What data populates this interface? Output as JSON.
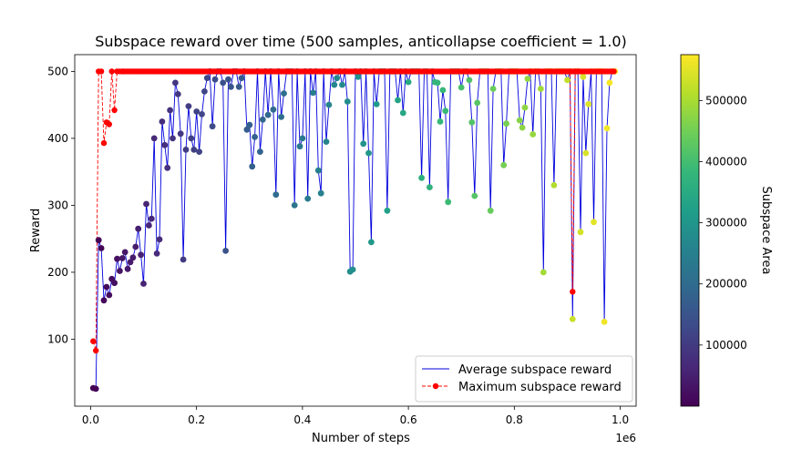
{
  "chart_data": {
    "type": "scatter",
    "title": "Subspace reward over time (500 samples, anticollapse coefficient = 1.0)",
    "xlabel": "Number of steps",
    "ylabel": "Reward",
    "x_offset_label": "1e6",
    "xlim": [
      -0.03,
      1.03
    ],
    "ylim": [
      0,
      525
    ],
    "x_ticks": [
      0.0,
      0.2,
      0.4,
      0.6,
      0.8,
      1.0
    ],
    "x_tick_labels": [
      "0.0",
      "0.2",
      "0.4",
      "0.6",
      "0.8",
      "1.0"
    ],
    "y_ticks": [
      100,
      200,
      300,
      400,
      500
    ],
    "y_tick_labels": [
      "100",
      "200",
      "300",
      "400",
      "500"
    ],
    "legend": {
      "position": "lower-right",
      "entries": [
        "Average subspace reward",
        "Maximum subspace reward"
      ]
    },
    "colorbar": {
      "label": "Subspace Area",
      "range": [
        0,
        575000
      ],
      "ticks": [
        100000,
        200000,
        300000,
        400000,
        500000
      ],
      "tick_labels": [
        "100000",
        "200000",
        "300000",
        "400000",
        "500000"
      ]
    },
    "colors": {
      "average_line": "#0000dd",
      "maximum": "#ff0000",
      "viridis": [
        "#440154",
        "#482878",
        "#3e4989",
        "#31688e",
        "#26828e",
        "#1f9e89",
        "#35b779",
        "#6ece58",
        "#b5de2b",
        "#fde725"
      ]
    },
    "series": [
      {
        "name": "Average subspace reward",
        "style": "line",
        "points": [
          [
            0.005,
            27
          ],
          [
            0.01,
            26
          ],
          [
            0.015,
            248
          ],
          [
            0.02,
            236
          ],
          [
            0.025,
            158
          ],
          [
            0.03,
            178
          ],
          [
            0.035,
            166
          ],
          [
            0.04,
            190
          ],
          [
            0.045,
            184
          ],
          [
            0.05,
            220
          ],
          [
            0.055,
            202
          ],
          [
            0.06,
            221
          ],
          [
            0.065,
            230
          ],
          [
            0.07,
            205
          ],
          [
            0.075,
            215
          ],
          [
            0.08,
            222
          ],
          [
            0.085,
            238
          ],
          [
            0.09,
            265
          ],
          [
            0.095,
            226
          ],
          [
            0.1,
            183
          ],
          [
            0.105,
            302
          ],
          [
            0.11,
            270
          ],
          [
            0.115,
            280
          ],
          [
            0.12,
            400
          ],
          [
            0.125,
            228
          ],
          [
            0.13,
            249
          ],
          [
            0.135,
            425
          ],
          [
            0.14,
            390
          ],
          [
            0.145,
            356
          ],
          [
            0.15,
            442
          ],
          [
            0.155,
            400
          ],
          [
            0.16,
            483
          ],
          [
            0.165,
            466
          ],
          [
            0.17,
            407
          ],
          [
            0.175,
            219
          ],
          [
            0.18,
            383
          ],
          [
            0.185,
            448
          ],
          [
            0.19,
            400
          ],
          [
            0.195,
            383
          ],
          [
            0.2,
            440
          ],
          [
            0.205,
            380
          ],
          [
            0.21,
            436
          ],
          [
            0.215,
            470
          ],
          [
            0.22,
            490
          ],
          [
            0.225,
            500
          ],
          [
            0.23,
            418
          ],
          [
            0.235,
            488
          ],
          [
            0.24,
            500
          ],
          [
            0.245,
            500
          ],
          [
            0.25,
            483
          ],
          [
            0.255,
            232
          ],
          [
            0.26,
            488
          ],
          [
            0.265,
            477
          ],
          [
            0.27,
            500
          ],
          [
            0.275,
            500
          ],
          [
            0.28,
            477
          ],
          [
            0.285,
            490
          ],
          [
            0.29,
            500
          ],
          [
            0.295,
            413
          ],
          [
            0.3,
            420
          ],
          [
            0.305,
            358
          ],
          [
            0.31,
            402
          ],
          [
            0.315,
            500
          ],
          [
            0.32,
            380
          ],
          [
            0.325,
            428
          ],
          [
            0.33,
            500
          ],
          [
            0.335,
            435
          ],
          [
            0.34,
            500
          ],
          [
            0.345,
            443
          ],
          [
            0.35,
            316
          ],
          [
            0.355,
            500
          ],
          [
            0.36,
            432
          ],
          [
            0.365,
            467
          ],
          [
            0.37,
            500
          ],
          [
            0.375,
            500
          ],
          [
            0.38,
            500
          ],
          [
            0.385,
            300
          ],
          [
            0.39,
            500
          ],
          [
            0.395,
            388
          ],
          [
            0.4,
            400
          ],
          [
            0.405,
            500
          ],
          [
            0.41,
            310
          ],
          [
            0.415,
            500
          ],
          [
            0.42,
            468
          ],
          [
            0.425,
            500
          ],
          [
            0.43,
            352
          ],
          [
            0.435,
            318
          ],
          [
            0.44,
            500
          ],
          [
            0.445,
            395
          ],
          [
            0.45,
            450
          ],
          [
            0.455,
            500
          ],
          [
            0.46,
            480
          ],
          [
            0.465,
            490
          ],
          [
            0.47,
            500
          ],
          [
            0.475,
            480
          ],
          [
            0.48,
            500
          ],
          [
            0.485,
            455
          ],
          [
            0.49,
            201
          ],
          [
            0.495,
            204
          ],
          [
            0.5,
            500
          ],
          [
            0.505,
            492
          ],
          [
            0.51,
            500
          ],
          [
            0.515,
            392
          ],
          [
            0.52,
            500
          ],
          [
            0.525,
            378
          ],
          [
            0.53,
            245
          ],
          [
            0.535,
            500
          ],
          [
            0.54,
            451
          ],
          [
            0.545,
            500
          ],
          [
            0.55,
            500
          ],
          [
            0.555,
            500
          ],
          [
            0.56,
            292
          ],
          [
            0.565,
            500
          ],
          [
            0.57,
            500
          ],
          [
            0.575,
            500
          ],
          [
            0.58,
            457
          ],
          [
            0.585,
            500
          ],
          [
            0.59,
            438
          ],
          [
            0.595,
            500
          ],
          [
            0.6,
            484
          ],
          [
            0.605,
            500
          ],
          [
            0.61,
            500
          ],
          [
            0.615,
            500
          ],
          [
            0.62,
            500
          ],
          [
            0.625,
            341
          ],
          [
            0.63,
            500
          ],
          [
            0.635,
            500
          ],
          [
            0.64,
            327
          ],
          [
            0.645,
            500
          ],
          [
            0.65,
            484
          ],
          [
            0.655,
            483
          ],
          [
            0.66,
            425
          ],
          [
            0.665,
            472
          ],
          [
            0.67,
            441
          ],
          [
            0.675,
            305
          ],
          [
            0.68,
            500
          ],
          [
            0.685,
            500
          ],
          [
            0.69,
            500
          ],
          [
            0.695,
            500
          ],
          [
            0.7,
            476
          ],
          [
            0.705,
            500
          ],
          [
            0.71,
            500
          ],
          [
            0.715,
            487
          ],
          [
            0.72,
            424
          ],
          [
            0.725,
            314
          ],
          [
            0.73,
            453
          ],
          [
            0.735,
            500
          ],
          [
            0.74,
            500
          ],
          [
            0.745,
            500
          ],
          [
            0.75,
            500
          ],
          [
            0.755,
            292
          ],
          [
            0.76,
            474
          ],
          [
            0.765,
            500
          ],
          [
            0.77,
            500
          ],
          [
            0.775,
            500
          ],
          [
            0.78,
            360
          ],
          [
            0.785,
            422
          ],
          [
            0.79,
            500
          ],
          [
            0.795,
            500
          ],
          [
            0.8,
            500
          ],
          [
            0.805,
            500
          ],
          [
            0.81,
            427
          ],
          [
            0.815,
            416
          ],
          [
            0.82,
            446
          ],
          [
            0.825,
            489
          ],
          [
            0.83,
            500
          ],
          [
            0.835,
            406
          ],
          [
            0.84,
            500
          ],
          [
            0.845,
            500
          ],
          [
            0.85,
            474
          ],
          [
            0.855,
            200
          ],
          [
            0.86,
            500
          ],
          [
            0.865,
            500
          ],
          [
            0.87,
            500
          ],
          [
            0.875,
            330
          ],
          [
            0.88,
            500
          ],
          [
            0.885,
            500
          ],
          [
            0.89,
            500
          ],
          [
            0.895,
            500
          ],
          [
            0.9,
            487
          ],
          [
            0.905,
            500
          ],
          [
            0.91,
            130
          ],
          [
            0.915,
            500
          ],
          [
            0.92,
            500
          ],
          [
            0.925,
            260
          ],
          [
            0.93,
            492
          ],
          [
            0.935,
            378
          ],
          [
            0.94,
            451
          ],
          [
            0.945,
            500
          ],
          [
            0.95,
            275
          ],
          [
            0.955,
            500
          ],
          [
            0.96,
            500
          ],
          [
            0.965,
            500
          ],
          [
            0.97,
            126
          ],
          [
            0.975,
            415
          ],
          [
            0.98,
            483
          ],
          [
            0.985,
            500
          ],
          [
            0.99,
            500
          ]
        ]
      },
      {
        "name": "Maximum subspace reward",
        "style": "dashed-line-markers",
        "points": [
          [
            0.005,
            97
          ],
          [
            0.01,
            83
          ],
          [
            0.015,
            500
          ],
          [
            0.02,
            500
          ],
          [
            0.025,
            393
          ],
          [
            0.03,
            424
          ],
          [
            0.035,
            421
          ],
          [
            0.04,
            500
          ],
          [
            0.045,
            442
          ],
          [
            0.05,
            500
          ],
          [
            0.055,
            500
          ],
          [
            0.06,
            500
          ],
          [
            0.9,
            500
          ],
          [
            0.905,
            500
          ],
          [
            0.91,
            171
          ],
          [
            0.915,
            500
          ],
          [
            0.92,
            500
          ]
        ]
      }
    ]
  }
}
